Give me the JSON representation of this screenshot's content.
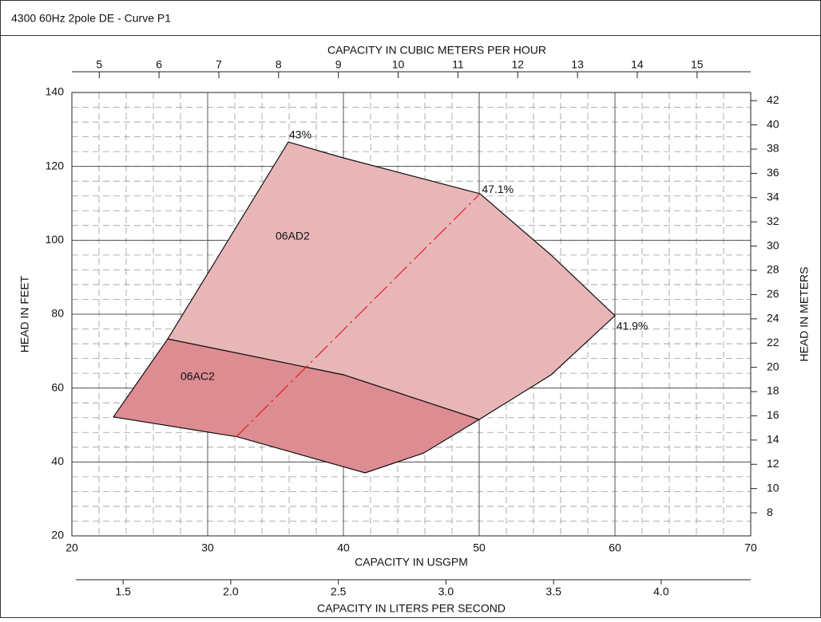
{
  "chart_data": {
    "type": "area",
    "title": "4300 60Hz 2pole DE - Curve P1",
    "xlabel": "CAPACITY IN USGPM",
    "ylabel": "HEAD IN FEET",
    "x2label": "CAPACITY IN CUBIC METERS PER HOUR",
    "x3label": "CAPACITY IN LITERS PER SECOND",
    "y2label": "HEAD IN METERS",
    "xlim": [
      20,
      70
    ],
    "xticks": [
      20,
      30,
      40,
      50,
      60,
      70
    ],
    "ylim": [
      20,
      140
    ],
    "yticks": [
      20,
      40,
      60,
      80,
      100,
      120,
      140
    ],
    "x2lim": [
      4.542,
      15.898
    ],
    "x2ticks": [
      5,
      6,
      7,
      8,
      9,
      10,
      11,
      12,
      13,
      14,
      15
    ],
    "x3lim": [
      1.262,
      4.416
    ],
    "x3ticks": [
      1.5,
      {
        "value": 2,
        "label": "2.0"
      },
      2.5,
      {
        "value": 3,
        "label": "3.0"
      },
      3.5,
      {
        "value": 4,
        "label": "4.0"
      }
    ],
    "y2lim": [
      6.096,
      42.672
    ],
    "y2ticks": [
      8,
      10,
      12,
      14,
      16,
      18,
      20,
      22,
      24,
      26,
      28,
      30,
      32,
      34,
      36,
      38,
      40,
      42
    ],
    "grid": true,
    "grid_minor": {
      "x": 2,
      "y": 4
    },
    "series": [
      {
        "name": "06AD2",
        "color": "#e9b6b8",
        "x": [
          27.06,
          35.94,
          40,
          50.06,
          55.3,
          60,
          55.3,
          50,
          40,
          27.06
        ],
        "y": [
          73.3,
          126.6,
          122.3,
          112.6,
          96.0,
          79.6,
          63.6,
          51.5,
          63.6,
          73.3
        ],
        "label_at": [
          35,
          101
        ]
      },
      {
        "name": "06AC2",
        "color": "#dd8c92",
        "x": [
          23.06,
          27.06,
          40,
          50,
          45.9,
          41.6,
          32.2,
          23.06
        ],
        "y": [
          52.2,
          73.3,
          63.6,
          51.5,
          42.4,
          37.05,
          46.8,
          52.2
        ],
        "label_at": [
          28,
          63
        ]
      }
    ],
    "efficiency_line": {
      "color": "#e02020",
      "x": [
        32.1,
        50.06
      ],
      "y": [
        46.8,
        112.6
      ]
    },
    "annotations": [
      {
        "text": "43%",
        "x": 36.0,
        "y": 128.4
      },
      {
        "text": "47.1%",
        "x": 50.2,
        "y": 113.6
      },
      {
        "text": "41.9%",
        "x": 60.1,
        "y": 76.6
      }
    ]
  }
}
